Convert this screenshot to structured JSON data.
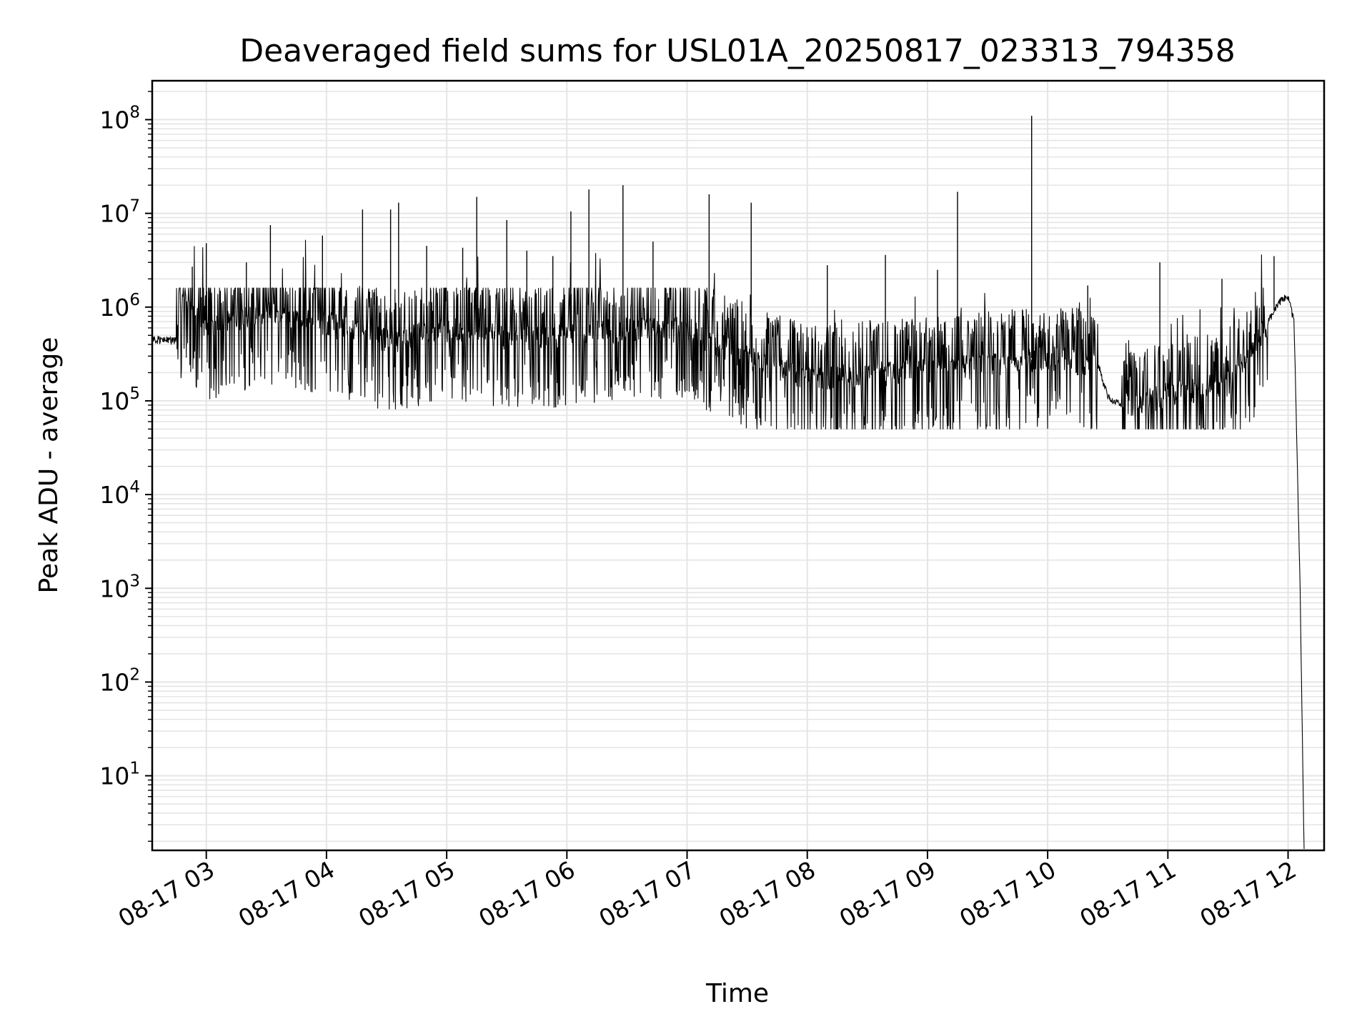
{
  "chart_data": {
    "type": "line",
    "title": "Deaveraged field sums for USL01A_20250817_023313_794358",
    "xlabel": "Time",
    "ylabel": "Peak ADU - average",
    "y_scale": "log",
    "ylim": [
      1.6,
      260000000.0
    ],
    "xlim": [
      "2025-08-17 02:33",
      "2025-08-17 12:18"
    ],
    "grid": true,
    "line_color": "#000000",
    "grid_color": "#e5e5e5",
    "x_ticks": [
      "08-17 03",
      "08-17 04",
      "08-17 05",
      "08-17 06",
      "08-17 07",
      "08-17 08",
      "08-17 09",
      "08-17 10",
      "08-17 11",
      "08-17 12"
    ],
    "y_ticks": [
      {
        "base": "10",
        "exp": "1",
        "value": 10
      },
      {
        "base": "10",
        "exp": "2",
        "value": 100
      },
      {
        "base": "10",
        "exp": "3",
        "value": 1000
      },
      {
        "base": "10",
        "exp": "4",
        "value": 10000
      },
      {
        "base": "10",
        "exp": "5",
        "value": 100000
      },
      {
        "base": "10",
        "exp": "6",
        "value": 1000000
      },
      {
        "base": "10",
        "exp": "7",
        "value": 10000000
      },
      {
        "base": "10",
        "exp": "8",
        "value": 100000000
      }
    ],
    "series": [
      {
        "baseline": [
          {
            "x": "2025-08-17 02:33",
            "y": 450000
          },
          {
            "x": "2025-08-17 02:45",
            "y": 440000
          },
          {
            "x": "2025-08-17 02:48",
            "y": 1200000
          },
          {
            "x": "2025-08-17 02:52",
            "y": 1000000
          },
          {
            "x": "2025-08-17 03:00",
            "y": 600000
          },
          {
            "x": "2025-08-17 03:30",
            "y": 900000
          },
          {
            "x": "2025-08-17 04:00",
            "y": 700000
          },
          {
            "x": "2025-08-17 04:30",
            "y": 450000
          },
          {
            "x": "2025-08-17 05:00",
            "y": 600000
          },
          {
            "x": "2025-08-17 05:30",
            "y": 500000
          },
          {
            "x": "2025-08-17 06:00",
            "y": 500000
          },
          {
            "x": "2025-08-17 06:30",
            "y": 600000
          },
          {
            "x": "2025-08-17 07:00",
            "y": 600000
          },
          {
            "x": "2025-08-17 07:30",
            "y": 300000
          },
          {
            "x": "2025-08-17 08:00",
            "y": 180000
          },
          {
            "x": "2025-08-17 08:30",
            "y": 200000
          },
          {
            "x": "2025-08-17 09:00",
            "y": 220000
          },
          {
            "x": "2025-08-17 09:30",
            "y": 250000
          },
          {
            "x": "2025-08-17 10:00",
            "y": 300000
          },
          {
            "x": "2025-08-17 10:25",
            "y": 250000
          },
          {
            "x": "2025-08-17 10:30",
            "y": 110000
          },
          {
            "x": "2025-08-17 10:36",
            "y": 90000
          },
          {
            "x": "2025-08-17 11:00",
            "y": 120000
          },
          {
            "x": "2025-08-17 11:30",
            "y": 160000
          },
          {
            "x": "2025-08-17 11:45",
            "y": 450000
          },
          {
            "x": "2025-08-17 11:55",
            "y": 1100000
          },
          {
            "x": "2025-08-17 12:00",
            "y": 1300000
          },
          {
            "x": "2025-08-17 12:03",
            "y": 700000
          },
          {
            "x": "2025-08-17 12:06",
            "y": 1000
          },
          {
            "x": "2025-08-17 12:08",
            "y": 1.6
          }
        ],
        "spikes": [
          {
            "x": "2025-08-17 02:53",
            "y": 2700000
          },
          {
            "x": "2025-08-17 03:00",
            "y": 4800000
          },
          {
            "x": "2025-08-17 03:20",
            "y": 3000000
          },
          {
            "x": "2025-08-17 03:32",
            "y": 7500000
          },
          {
            "x": "2025-08-17 03:58",
            "y": 5800000
          },
          {
            "x": "2025-08-17 04:18",
            "y": 11000000
          },
          {
            "x": "2025-08-17 04:32",
            "y": 11000000
          },
          {
            "x": "2025-08-17 04:36",
            "y": 13000000
          },
          {
            "x": "2025-08-17 04:50",
            "y": 4500000
          },
          {
            "x": "2025-08-17 05:08",
            "y": 4300000
          },
          {
            "x": "2025-08-17 05:15",
            "y": 15000000
          },
          {
            "x": "2025-08-17 05:30",
            "y": 8500000
          },
          {
            "x": "2025-08-17 05:40",
            "y": 4000000
          },
          {
            "x": "2025-08-17 05:53",
            "y": 3500000
          },
          {
            "x": "2025-08-17 06:02",
            "y": 10500000
          },
          {
            "x": "2025-08-17 06:11",
            "y": 18000000
          },
          {
            "x": "2025-08-17 06:28",
            "y": 20000000
          },
          {
            "x": "2025-08-17 06:43",
            "y": 5000000
          },
          {
            "x": "2025-08-17 07:11",
            "y": 16000000
          },
          {
            "x": "2025-08-17 07:32",
            "y": 13000000
          },
          {
            "x": "2025-08-17 08:10",
            "y": 2800000
          },
          {
            "x": "2025-08-17 08:39",
            "y": 3600000
          },
          {
            "x": "2025-08-17 09:05",
            "y": 2500000
          },
          {
            "x": "2025-08-17 09:15",
            "y": 17000000
          },
          {
            "x": "2025-08-17 09:52",
            "y": 110000000
          },
          {
            "x": "2025-08-17 10:20",
            "y": 1700000
          },
          {
            "x": "2025-08-17 10:56",
            "y": 3000000
          },
          {
            "x": "2025-08-17 11:27",
            "y": 2000000
          },
          {
            "x": "2025-08-17 11:53",
            "y": 3500000
          }
        ]
      }
    ]
  }
}
